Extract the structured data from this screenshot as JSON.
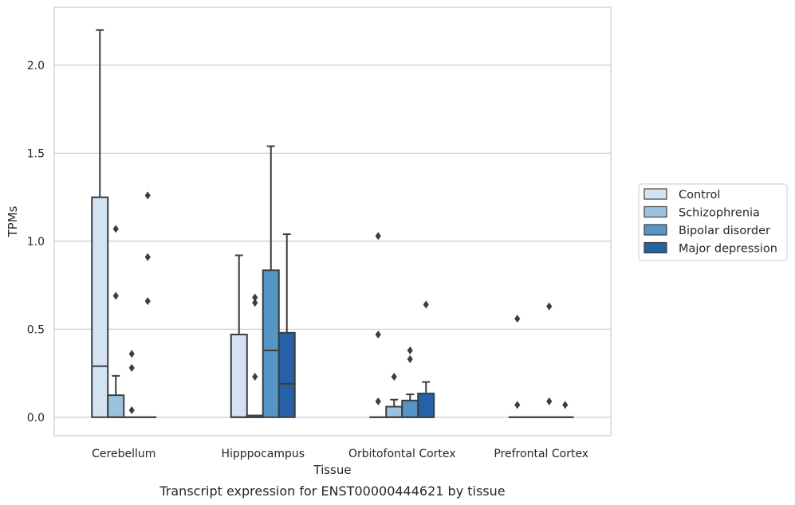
{
  "caption": "Transcript expression for ENST00000444621 by tissue",
  "chart_data": {
    "type": "box",
    "title": "",
    "xlabel": "Tissue",
    "ylabel": "TPMs",
    "ylim": [
      -0.105,
      2.33
    ],
    "yticks": [
      0.0,
      0.5,
      1.0,
      1.5,
      2.0
    ],
    "ytick_labels": [
      "0.0",
      "0.5",
      "1.0",
      "1.5",
      "2.0"
    ],
    "grid": "horizontal",
    "legend_placement": "right",
    "categories": [
      "Cerebellum",
      "Hipppocampus",
      "Orbitofontal Cortex",
      "Prefrontal Cortex"
    ],
    "series": [
      {
        "name": "Control",
        "color": "#d4e3f1",
        "boxes": [
          {
            "min": 0,
            "q1": 0,
            "median": 0.29,
            "q3": 1.25,
            "max": 2.2,
            "outliers": []
          },
          {
            "min": 0,
            "q1": 0,
            "median": 0,
            "q3": 0.47,
            "max": 0.92,
            "outliers": []
          },
          {
            "min": 0,
            "q1": 0,
            "median": 0,
            "q3": 0,
            "max": 0,
            "outliers": [
              1.03,
              0.47,
              0.09
            ]
          },
          {
            "min": 0,
            "q1": 0,
            "median": 0,
            "q3": 0,
            "max": 0,
            "outliers": [
              0.56,
              0.07
            ]
          }
        ]
      },
      {
        "name": "Schizophrenia",
        "color": "#9ac4dd",
        "boxes": [
          {
            "min": 0,
            "q1": 0,
            "median": 0,
            "q3": 0.125,
            "max": 0.235,
            "outliers": [
              1.07,
              0.69
            ]
          },
          {
            "min": 0,
            "q1": 0,
            "median": 0,
            "q3": 0.01,
            "max": 0.01,
            "outliers": [
              0.68,
              0.65,
              0.23
            ]
          },
          {
            "min": 0,
            "q1": 0,
            "median": 0,
            "q3": 0.06,
            "max": 0.1,
            "outliers": [
              0.23
            ]
          },
          {
            "min": 0,
            "q1": 0,
            "median": 0,
            "q3": 0,
            "max": 0,
            "outliers": []
          }
        ]
      },
      {
        "name": "Bipolar disorder",
        "color": "#5496c5",
        "boxes": [
          {
            "min": 0,
            "q1": 0,
            "median": 0,
            "q3": 0,
            "max": 0,
            "outliers": [
              0.36,
              0.28,
              0.04
            ]
          },
          {
            "min": 0,
            "q1": 0,
            "median": 0.38,
            "q3": 0.835,
            "max": 1.54,
            "outliers": []
          },
          {
            "min": 0,
            "q1": 0,
            "median": 0,
            "q3": 0.095,
            "max": 0.13,
            "outliers": [
              0.38,
              0.33
            ]
          },
          {
            "min": 0,
            "q1": 0,
            "median": 0,
            "q3": 0,
            "max": 0,
            "outliers": [
              0.63,
              0.09
            ]
          }
        ]
      },
      {
        "name": "Major depression",
        "color": "#2561a4",
        "boxes": [
          {
            "min": 0,
            "q1": 0,
            "median": 0,
            "q3": 0,
            "max": 0,
            "outliers": [
              1.26,
              0.91,
              0.66
            ]
          },
          {
            "min": 0,
            "q1": 0,
            "median": 0.19,
            "q3": 0.48,
            "max": 1.04,
            "outliers": []
          },
          {
            "min": 0,
            "q1": 0,
            "median": 0,
            "q3": 0.135,
            "max": 0.2,
            "outliers": [
              0.64
            ]
          },
          {
            "min": 0,
            "q1": 0,
            "median": 0,
            "q3": 0,
            "max": 0,
            "outliers": [
              0.07
            ]
          }
        ]
      }
    ]
  }
}
